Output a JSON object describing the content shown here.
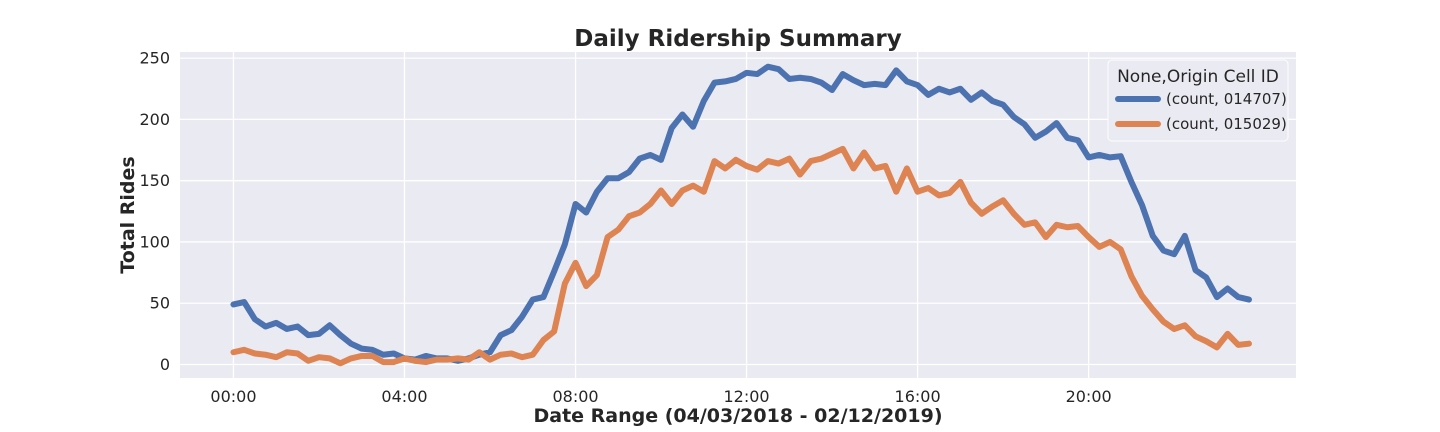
{
  "chart_data": {
    "type": "line",
    "title": "Daily Ridership Summary",
    "xlabel": "Date Range (04/03/2018 - 02/12/2019)",
    "ylabel": "Total Rides",
    "xlim": [
      -1.25,
      24.85
    ],
    "ylim": [
      -11,
      255
    ],
    "x_ticks": [
      0,
      4,
      8,
      12,
      16,
      20
    ],
    "x_tick_labels": [
      "00:00",
      "04:00",
      "08:00",
      "12:00",
      "16:00",
      "20:00"
    ],
    "y_ticks": [
      0,
      50,
      100,
      150,
      200,
      250
    ],
    "y_tick_labels": [
      "0",
      "50",
      "100",
      "150",
      "200",
      "250"
    ],
    "grid": true,
    "legend": {
      "title": "None,Origin Cell ID",
      "position": "top-right"
    },
    "x": [
      0,
      0.25,
      0.5,
      0.75,
      1,
      1.25,
      1.5,
      1.75,
      2,
      2.25,
      2.5,
      2.75,
      3,
      3.25,
      3.5,
      3.75,
      4,
      4.25,
      4.5,
      4.75,
      5,
      5.25,
      5.5,
      5.75,
      6,
      6.25,
      6.5,
      6.75,
      7,
      7.25,
      7.5,
      7.75,
      8,
      8.25,
      8.5,
      8.75,
      9,
      9.25,
      9.5,
      9.75,
      10,
      10.25,
      10.5,
      10.75,
      11,
      11.25,
      11.5,
      11.75,
      12,
      12.25,
      12.5,
      12.75,
      13,
      13.25,
      13.5,
      13.75,
      14,
      14.25,
      14.5,
      14.75,
      15,
      15.25,
      15.5,
      15.75,
      16,
      16.25,
      16.5,
      16.75,
      17,
      17.25,
      17.5,
      17.75,
      18,
      18.25,
      18.5,
      18.75,
      19,
      19.25,
      19.5,
      19.75,
      20,
      20.25,
      20.5,
      20.75,
      21,
      21.25,
      21.5,
      21.75,
      22,
      22.25,
      22.5,
      22.75,
      23,
      23.25,
      23.5,
      23.75
    ],
    "series": [
      {
        "name": "(count, 014707)",
        "color": "#4c72b0",
        "values": [
          49,
          51,
          37,
          31,
          34,
          29,
          31,
          24,
          25,
          32,
          24,
          17,
          13,
          12,
          8,
          9,
          5,
          4,
          7,
          5,
          5,
          3,
          5,
          8,
          10,
          24,
          28,
          39,
          53,
          55,
          76,
          98,
          131,
          124,
          141,
          152,
          152,
          157,
          168,
          171,
          167,
          193,
          204,
          194,
          215,
          230,
          231,
          233,
          238,
          237,
          243,
          241,
          233,
          234,
          233,
          230,
          224,
          237,
          232,
          228,
          229,
          228,
          240,
          231,
          228,
          220,
          225,
          222,
          225,
          216,
          222,
          215,
          212,
          202,
          196,
          185,
          190,
          197,
          185,
          183,
          169,
          171,
          169,
          170,
          149,
          130,
          105,
          93,
          90,
          105,
          77,
          71,
          55,
          62,
          55,
          53
        ]
      },
      {
        "name": "(count, 015029)",
        "color": "#dd8452",
        "values": [
          10,
          12,
          9,
          8,
          6,
          10,
          9,
          3,
          6,
          5,
          1,
          5,
          7,
          7,
          2,
          2,
          5,
          3,
          2,
          4,
          4,
          5,
          4,
          10,
          4,
          8,
          9,
          6,
          8,
          20,
          27,
          66,
          83,
          64,
          73,
          104,
          110,
          121,
          124,
          131,
          142,
          131,
          142,
          146,
          141,
          166,
          160,
          167,
          162,
          159,
          166,
          164,
          168,
          155,
          166,
          168,
          172,
          176,
          160,
          173,
          160,
          162,
          141,
          160,
          141,
          144,
          138,
          140,
          149,
          132,
          123,
          129,
          134,
          123,
          114,
          116,
          104,
          114,
          112,
          113,
          104,
          96,
          100,
          94,
          72,
          56,
          45,
          35,
          29,
          32,
          23,
          19,
          14,
          25,
          16,
          17
        ]
      }
    ]
  }
}
